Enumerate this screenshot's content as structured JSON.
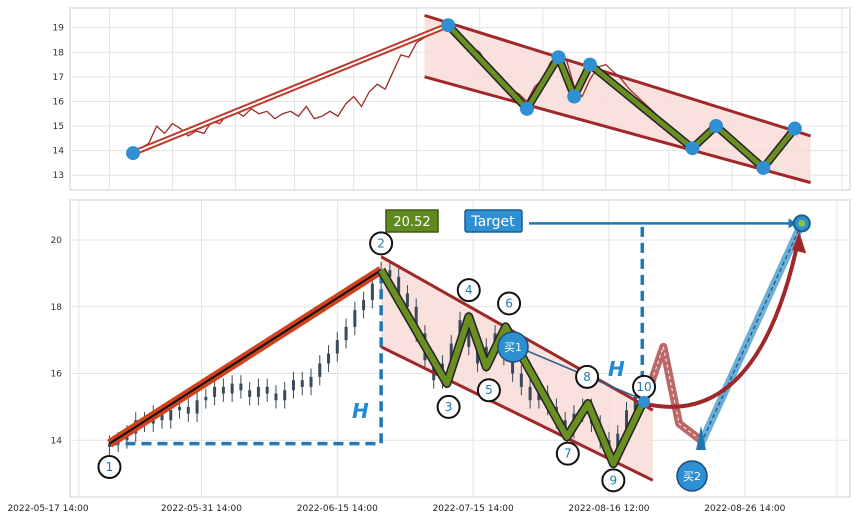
{
  "chart_data": [
    {
      "type": "line",
      "panel": "top",
      "grid": true,
      "ylim": [
        12.4,
        19.8
      ],
      "yticks": [
        "13",
        "14",
        "15",
        "16",
        "17",
        "18",
        "19"
      ],
      "price_series": [
        [
          0,
          13.9
        ],
        [
          1,
          14.1
        ],
        [
          2,
          14.3
        ],
        [
          3,
          15.0
        ],
        [
          4,
          14.7
        ],
        [
          5,
          15.1
        ],
        [
          6,
          14.9
        ],
        [
          7,
          14.6
        ],
        [
          8,
          14.8
        ],
        [
          9,
          14.7
        ],
        [
          10,
          15.2
        ],
        [
          11,
          15.1
        ],
        [
          12,
          15.5
        ],
        [
          13,
          15.6
        ],
        [
          14,
          15.4
        ],
        [
          15,
          15.7
        ],
        [
          16,
          15.5
        ],
        [
          17,
          15.6
        ],
        [
          18,
          15.3
        ],
        [
          19,
          15.5
        ],
        [
          20,
          15.6
        ],
        [
          21,
          15.4
        ],
        [
          22,
          15.8
        ],
        [
          23,
          15.3
        ],
        [
          24,
          15.4
        ],
        [
          25,
          15.6
        ],
        [
          26,
          15.4
        ],
        [
          27,
          15.9
        ],
        [
          28,
          16.2
        ],
        [
          29,
          15.8
        ],
        [
          30,
          16.4
        ],
        [
          31,
          16.7
        ],
        [
          32,
          16.5
        ],
        [
          33,
          17.2
        ],
        [
          34,
          17.9
        ],
        [
          35,
          17.8
        ],
        [
          36,
          18.4
        ],
        [
          37,
          18.6
        ],
        [
          38,
          18.8
        ],
        [
          39,
          19.0
        ],
        [
          40,
          19.1
        ],
        [
          41,
          18.8
        ],
        [
          42,
          18.5
        ],
        [
          43,
          18.2
        ],
        [
          44,
          18.0
        ],
        [
          45,
          17.5
        ],
        [
          46,
          17.2
        ],
        [
          47,
          16.8
        ],
        [
          48,
          16.5
        ],
        [
          49,
          16.3
        ],
        [
          50,
          16.0
        ],
        [
          51,
          16.6
        ],
        [
          52,
          16.9
        ],
        [
          53,
          17.6
        ],
        [
          54,
          17.9
        ],
        [
          55,
          17.7
        ],
        [
          56,
          16.6
        ],
        [
          57,
          16.2
        ],
        [
          58,
          16.9
        ],
        [
          59,
          17.4
        ],
        [
          60,
          17.5
        ],
        [
          61,
          17.2
        ],
        [
          62,
          16.9
        ],
        [
          63,
          16.5
        ],
        [
          64,
          16.2
        ],
        [
          65,
          15.9
        ],
        [
          66,
          15.6
        ],
        [
          67,
          15.2
        ],
        [
          68,
          14.9
        ],
        [
          69,
          14.6
        ],
        [
          70,
          14.4
        ],
        [
          71,
          14.2
        ],
        [
          72,
          14.4
        ],
        [
          73,
          14.8
        ],
        [
          74,
          15.0
        ],
        [
          75,
          14.7
        ],
        [
          76,
          14.5
        ],
        [
          77,
          14.2
        ],
        [
          78,
          13.8
        ],
        [
          79,
          13.5
        ],
        [
          80,
          13.3
        ],
        [
          81,
          13.6
        ],
        [
          82,
          14.2
        ],
        [
          83,
          14.6
        ],
        [
          84,
          15.0
        ]
      ],
      "markers": [
        [
          0,
          13.9
        ],
        [
          40,
          19.1
        ],
        [
          50,
          15.7
        ],
        [
          54,
          17.8
        ],
        [
          56,
          16.2
        ],
        [
          58,
          17.5
        ],
        [
          71,
          14.1
        ],
        [
          74,
          15.0
        ],
        [
          80,
          13.3
        ],
        [
          84,
          14.9
        ]
      ],
      "zigzag": [
        [
          40,
          19.1
        ],
        [
          50,
          15.7
        ],
        [
          54,
          17.8
        ],
        [
          56,
          16.2
        ],
        [
          58,
          17.5
        ],
        [
          71,
          14.1
        ],
        [
          74,
          15.0
        ],
        [
          80,
          13.3
        ],
        [
          84,
          14.9
        ]
      ],
      "up_line": [
        [
          0,
          13.9
        ],
        [
          40,
          19.1
        ]
      ],
      "channel_upper": [
        [
          37,
          19.5
        ],
        [
          86,
          14.6
        ]
      ],
      "channel_lower": [
        [
          37,
          17.0
        ],
        [
          86,
          12.7
        ]
      ]
    },
    {
      "type": "candlestick",
      "panel": "bottom",
      "grid": true,
      "ylim": [
        12.3,
        21.2
      ],
      "yticks": [
        "14",
        "16",
        "18",
        "20"
      ],
      "xticks": [
        "2022-05-17 14:00",
        "2022-05-31 14:00",
        "2022-06-15 14:00",
        "2022-07-15 14:00",
        "2022-08-16 12:00",
        "2022-08-26 14:00"
      ],
      "close_series": [
        [
          0,
          13.9
        ],
        [
          1,
          14.0
        ],
        [
          2,
          14.2
        ],
        [
          3,
          14.6
        ],
        [
          4,
          14.5
        ],
        [
          5,
          14.8
        ],
        [
          6,
          14.6
        ],
        [
          7,
          14.9
        ],
        [
          8,
          15.0
        ],
        [
          9,
          14.8
        ],
        [
          10,
          15.2
        ],
        [
          11,
          15.3
        ],
        [
          12,
          15.6
        ],
        [
          13,
          15.4
        ],
        [
          14,
          15.7
        ],
        [
          15,
          15.5
        ],
        [
          16,
          15.3
        ],
        [
          17,
          15.6
        ],
        [
          18,
          15.4
        ],
        [
          19,
          15.2
        ],
        [
          20,
          15.5
        ],
        [
          21,
          15.8
        ],
        [
          22,
          15.6
        ],
        [
          23,
          15.9
        ],
        [
          24,
          16.3
        ],
        [
          25,
          16.6
        ],
        [
          26,
          17.0
        ],
        [
          27,
          17.4
        ],
        [
          28,
          17.9
        ],
        [
          29,
          18.2
        ],
        [
          30,
          18.7
        ],
        [
          31,
          19.1
        ],
        [
          32,
          18.9
        ],
        [
          33,
          18.4
        ],
        [
          34,
          18.0
        ],
        [
          35,
          17.2
        ],
        [
          36,
          16.4
        ],
        [
          37,
          15.8
        ],
        [
          38,
          16.3
        ],
        [
          39,
          16.9
        ],
        [
          40,
          17.6
        ],
        [
          41,
          16.8
        ],
        [
          42,
          16.3
        ],
        [
          43,
          16.8
        ],
        [
          44,
          17.2
        ],
        [
          45,
          16.5
        ],
        [
          46,
          16.0
        ],
        [
          47,
          15.6
        ],
        [
          48,
          15.2
        ],
        [
          49,
          15.4
        ],
        [
          50,
          15.0
        ],
        [
          51,
          14.6
        ],
        [
          52,
          14.3
        ],
        [
          53,
          14.8
        ],
        [
          54,
          15.0
        ],
        [
          55,
          14.5
        ],
        [
          56,
          14.0
        ],
        [
          57,
          13.6
        ],
        [
          58,
          14.2
        ],
        [
          59,
          14.9
        ],
        [
          60,
          15.3
        ]
      ],
      "labels": [
        {
          "t": "1",
          "x": 0,
          "y": 13.2
        },
        {
          "t": "2",
          "x": 31,
          "y": 19.9
        },
        {
          "t": "3",
          "x": 38.7,
          "y": 15.0
        },
        {
          "t": "4",
          "x": 41,
          "y": 18.5
        },
        {
          "t": "5",
          "x": 43.3,
          "y": 15.5
        },
        {
          "t": "6",
          "x": 45.6,
          "y": 18.1
        },
        {
          "t": "7",
          "x": 52.3,
          "y": 13.6
        },
        {
          "t": "8",
          "x": 54.5,
          "y": 15.9
        },
        {
          "t": "9",
          "x": 57.5,
          "y": 12.8
        },
        {
          "t": "10",
          "x": 61,
          "y": 15.6
        }
      ],
      "points": [
        [
          0,
          13.9
        ],
        [
          31,
          19.1
        ],
        [
          38.5,
          15.7
        ],
        [
          41,
          17.7
        ],
        [
          43,
          16.2
        ],
        [
          45.2,
          17.4
        ],
        [
          52.2,
          14.1
        ],
        [
          54.6,
          15.1
        ],
        [
          57.5,
          13.3
        ],
        [
          61,
          15.2
        ]
      ],
      "channel_upper": [
        [
          31,
          19.5
        ],
        [
          62,
          14.9
        ]
      ],
      "channel_lower": [
        [
          31,
          16.8
        ],
        [
          62,
          12.8
        ]
      ],
      "projection": [
        [
          61,
          15.1
        ],
        [
          63.2,
          16.8
        ],
        [
          65,
          14.5
        ],
        [
          67.5,
          14.0
        ]
      ],
      "target_line": [
        [
          67.5,
          13.9
        ],
        [
          79,
          20.5
        ]
      ],
      "target_price": 20.52,
      "labels_text": {
        "value_box": "20.52",
        "target_box": "Target",
        "buy1": "买1",
        "buy2": "买2",
        "h_left": "H",
        "h_right": "H"
      }
    }
  ],
  "colors": {
    "grid": "#d9d9d9",
    "red": "#a0282a",
    "green": "#6b8e23",
    "blue": "#2f8fd3",
    "channel_fill": "#f8d9d5"
  }
}
